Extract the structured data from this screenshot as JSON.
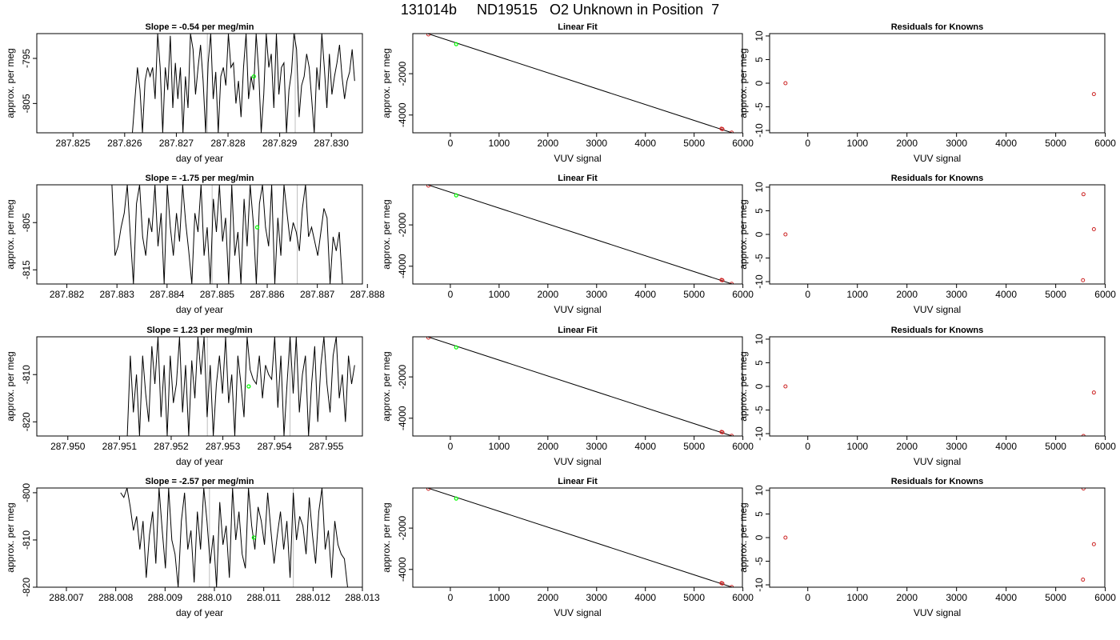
{
  "title": "131014b     ND19515   O2 Unknown in Position  7",
  "colors": {
    "series": "#000000",
    "unknown": "#00ff00",
    "known": "#cc2222",
    "vline": "#bebebe",
    "frame": "#000000"
  },
  "chart_data": [
    {
      "type": "line",
      "title": "Slope =  -0.54  per meg/min",
      "xlabel": "day of year",
      "ylabel": "approx. per meg",
      "xlim": [
        287.8243,
        287.8306
      ],
      "ylim": [
        -811.5,
        -789.5
      ],
      "xticks": [
        "287.825",
        "287.826",
        "287.827",
        "287.828",
        "287.829",
        "287.830"
      ],
      "xtick_values": [
        287.825,
        287.826,
        287.827,
        287.828,
        287.829,
        287.83
      ],
      "yticks": [
        "-795",
        "-805"
      ],
      "ytick_values": [
        -795,
        -805
      ],
      "x_start": 287.82615,
      "x_end": 287.83045,
      "values": [
        -811.5,
        -804,
        -797,
        -802,
        -811.5,
        -800,
        -797,
        -799,
        -797,
        -804,
        -789.5,
        -797,
        -811.5,
        -797,
        -802,
        -790,
        -806,
        -796,
        -804,
        -797,
        -811.5,
        -799,
        -806,
        -789.5,
        -793,
        -803,
        -797,
        -792,
        -800,
        -811.5,
        -796,
        -789.5,
        -804,
        -798,
        -811.5,
        -799,
        -797,
        -801,
        -789.5,
        -797,
        -796,
        -805,
        -800,
        -808,
        -797,
        -789.5,
        -804,
        -799,
        -802,
        -789.5,
        -798,
        -811.5,
        -803,
        -789.5,
        -797,
        -794,
        -806,
        -789.5,
        -803,
        -797,
        -796,
        -811.5,
        -802,
        -798,
        -789.5,
        -793,
        -808,
        -801,
        -799,
        -794,
        -797,
        -804,
        -811.5,
        -797,
        -802,
        -789.5,
        -797,
        -806,
        -794,
        -803,
        -799,
        -796,
        -792,
        -799,
        -804,
        -800,
        -798,
        -793,
        -800
      ],
      "vlines": [
        287.8276,
        287.8293
      ],
      "point": {
        "x": 287.8285,
        "y": -799
      }
    },
    {
      "type": "line",
      "title": "Slope =  -1.75  per meg/min",
      "xlabel": "day of year",
      "ylabel": "approx. per meg",
      "xlim": [
        287.8814,
        287.8879
      ],
      "ylim": [
        -818,
        -797
      ],
      "xticks": [
        "287.882",
        "287.883",
        "287.884",
        "287.885",
        "287.886",
        "287.887",
        "287.888"
      ],
      "xtick_values": [
        287.882,
        287.883,
        287.884,
        287.885,
        287.886,
        287.887,
        287.888
      ],
      "yticks": [
        "-805",
        "-815"
      ],
      "ytick_values": [
        -805,
        -815
      ],
      "x_start": 287.8829,
      "x_end": 287.8875,
      "values": [
        -797,
        -812,
        -810,
        -806,
        -803,
        -797,
        -808,
        -818,
        -801,
        -797,
        -808,
        -812,
        -804,
        -807,
        -797,
        -810,
        -803,
        -818,
        -797,
        -806,
        -812,
        -803,
        -809,
        -797,
        -805,
        -811,
        -818,
        -803,
        -807,
        -797,
        -812,
        -806,
        -818,
        -800,
        -807,
        -797,
        -809,
        -804,
        -818,
        -797,
        -812,
        -807,
        -818,
        -800,
        -810,
        -797,
        -805,
        -818,
        -801,
        -797,
        -806,
        -810,
        -797,
        -818,
        -804,
        -812,
        -797,
        -803,
        -809,
        -805,
        -807,
        -811,
        -802,
        -797,
        -808,
        -806,
        -809,
        -812,
        -807,
        -802,
        -804,
        -818,
        -808,
        -811,
        -807,
        -818
      ],
      "vlines": [
        287.8849,
        287.8866
      ],
      "point": {
        "x": 287.8858,
        "y": -806
      }
    },
    {
      "type": "line",
      "title": "Slope =  1.23  per meg/min",
      "xlabel": "day of year",
      "ylabel": "approx. per meg",
      "xlim": [
        287.9494,
        287.9557
      ],
      "ylim": [
        -823,
        -802
      ],
      "xticks": [
        "287.950",
        "287.951",
        "287.952",
        "287.953",
        "287.954",
        "287.955"
      ],
      "xtick_values": [
        287.95,
        287.951,
        287.952,
        287.953,
        287.954,
        287.955
      ],
      "yticks": [
        "-810",
        "-820"
      ],
      "ytick_values": [
        -810,
        -820
      ],
      "x_start": 287.95115,
      "x_end": 287.95555,
      "values": [
        -823,
        -806,
        -818,
        -810,
        -823,
        -806,
        -814,
        -820,
        -804,
        -812,
        -802,
        -819,
        -808,
        -823,
        -806,
        -816,
        -812,
        -802,
        -818,
        -808,
        -823,
        -807,
        -815,
        -802,
        -810,
        -802,
        -819,
        -808,
        -823,
        -812,
        -806,
        -814,
        -802,
        -816,
        -810,
        -823,
        -806,
        -812,
        -819,
        -802,
        -809,
        -811,
        -812,
        -806,
        -815,
        -808,
        -810,
        -811,
        -802,
        -817,
        -806,
        -823,
        -812,
        -802,
        -814,
        -802,
        -818,
        -810,
        -806,
        -823,
        -812,
        -804,
        -820,
        -808,
        -802,
        -812,
        -818,
        -806,
        -802,
        -815,
        -810,
        -820,
        -806,
        -812,
        -808
      ],
      "vlines": [
        287.9527,
        287.9543
      ],
      "point": {
        "x": 287.9535,
        "y": -812.5
      }
    },
    {
      "type": "line",
      "title": "Slope =  -2.57  per meg/min",
      "xlabel": "day of year",
      "ylabel": "approx. per meg",
      "xlim": [
        288.0064,
        288.013
      ],
      "ylim": [
        -820,
        -799
      ],
      "xticks": [
        "288.007",
        "288.008",
        "288.009",
        "288.010",
        "288.011",
        "288.012",
        "288.013"
      ],
      "xtick_values": [
        288.007,
        288.008,
        288.009,
        288.01,
        288.011,
        288.012,
        288.013
      ],
      "yticks": [
        "-800",
        "-810",
        "-820"
      ],
      "ytick_values": [
        -800,
        -810,
        -820
      ],
      "x_start": 288.0081,
      "x_end": 288.0127,
      "values": [
        -800,
        -801,
        -799,
        -803,
        -808,
        -805,
        -812,
        -806,
        -818,
        -809,
        -804,
        -815,
        -799,
        -808,
        -816,
        -799,
        -810,
        -813,
        -820,
        -806,
        -800,
        -812,
        -808,
        -819,
        -804,
        -812,
        -799,
        -806,
        -815,
        -809,
        -820,
        -802,
        -811,
        -807,
        -818,
        -799,
        -810,
        -804,
        -813,
        -816,
        -799,
        -807,
        -812,
        -803,
        -806,
        -811,
        -800,
        -808,
        -815,
        -809,
        -804,
        -812,
        -806,
        -818,
        -800,
        -810,
        -805,
        -807,
        -813,
        -801,
        -809,
        -815,
        -804,
        -799,
        -812,
        -808,
        -818,
        -806,
        -811,
        -813,
        -814,
        -820
      ],
      "vlines": [
        288.0099,
        288.0116
      ],
      "point": {
        "x": 288.0108,
        "y": -809.5
      }
    },
    {
      "type": "scatter",
      "title": "Linear Fit",
      "xlabel": "VUV signal",
      "ylabel": "approx. per meg",
      "xlim": [
        -770,
        5990
      ],
      "ylim": [
        -4860,
        -60
      ],
      "xticks": [
        "0",
        "1000",
        "2000",
        "3000",
        "4000",
        "5000",
        "6000"
      ],
      "xtick_values": [
        0,
        1000,
        2000,
        3000,
        4000,
        5000,
        6000
      ],
      "yticks": [
        "-2000",
        "-4000"
      ],
      "ytick_values": [
        -2000,
        -4000
      ],
      "line": [
        [
          -700,
          120
        ],
        [
          5780,
          -4860
        ]
      ],
      "knowns": [
        [
          -450,
          -100
        ],
        [
          5560,
          -4660
        ],
        [
          5580,
          -4680
        ],
        [
          5770,
          -4850
        ]
      ],
      "unknowns": [
        [
          120,
          -570
        ]
      ]
    },
    {
      "type": "scatter",
      "title": "Linear Fit",
      "xlabel": "VUV signal",
      "ylabel": "approx. per meg",
      "xlim": [
        -770,
        5990
      ],
      "ylim": [
        -4860,
        -60
      ],
      "xticks": [
        "0",
        "1000",
        "2000",
        "3000",
        "4000",
        "5000",
        "6000"
      ],
      "xtick_values": [
        0,
        1000,
        2000,
        3000,
        4000,
        5000,
        6000
      ],
      "yticks": [
        "-2000",
        "-4000"
      ],
      "ytick_values": [
        -2000,
        -4000
      ],
      "line": [
        [
          -700,
          120
        ],
        [
          5780,
          -4860
        ]
      ],
      "knowns": [
        [
          -450,
          -100
        ],
        [
          5560,
          -4660
        ],
        [
          5580,
          -4680
        ],
        [
          5770,
          -4850
        ]
      ],
      "unknowns": [
        [
          120,
          -570
        ]
      ]
    },
    {
      "type": "scatter",
      "title": "Linear Fit",
      "xlabel": "VUV signal",
      "ylabel": "approx. per meg",
      "xlim": [
        -770,
        5990
      ],
      "ylim": [
        -4860,
        -60
      ],
      "xticks": [
        "0",
        "1000",
        "2000",
        "3000",
        "4000",
        "5000",
        "6000"
      ],
      "xtick_values": [
        0,
        1000,
        2000,
        3000,
        4000,
        5000,
        6000
      ],
      "yticks": [
        "-2000",
        "-4000"
      ],
      "ytick_values": [
        -2000,
        -4000
      ],
      "line": [
        [
          -700,
          120
        ],
        [
          5780,
          -4860
        ]
      ],
      "knowns": [
        [
          -450,
          -100
        ],
        [
          5560,
          -4660
        ],
        [
          5580,
          -4680
        ],
        [
          5770,
          -4850
        ]
      ],
      "unknowns": [
        [
          120,
          -570
        ]
      ]
    },
    {
      "type": "scatter",
      "title": "Linear Fit",
      "xlabel": "VUV signal",
      "ylabel": "approx. per meg",
      "xlim": [
        -770,
        5990
      ],
      "ylim": [
        -4860,
        -60
      ],
      "xticks": [
        "0",
        "1000",
        "2000",
        "3000",
        "4000",
        "5000",
        "6000"
      ],
      "xtick_values": [
        0,
        1000,
        2000,
        3000,
        4000,
        5000,
        6000
      ],
      "yticks": [
        "-2000",
        "-4000"
      ],
      "ytick_values": [
        -2000,
        -4000
      ],
      "line": [
        [
          -700,
          120
        ],
        [
          5780,
          -4860
        ]
      ],
      "knowns": [
        [
          -450,
          -100
        ],
        [
          5560,
          -4660
        ],
        [
          5580,
          -4680
        ],
        [
          5770,
          -4850
        ]
      ],
      "unknowns": [
        [
          120,
          -570
        ]
      ]
    },
    {
      "type": "scatter",
      "title": "Residuals for Knowns",
      "xlabel": "VUV signal",
      "ylabel": "approx. per meg",
      "xlim": [
        -770,
        5990
      ],
      "ylim": [
        -10.5,
        10.5
      ],
      "xticks": [
        "0",
        "1000",
        "2000",
        "3000",
        "4000",
        "5000",
        "6000"
      ],
      "xtick_values": [
        0,
        1000,
        2000,
        3000,
        4000,
        5000,
        6000
      ],
      "yticks": [
        "-10",
        "-5",
        "0",
        "5",
        "10"
      ],
      "ytick_values": [
        -10,
        -5,
        0,
        5,
        10
      ],
      "knowns": [
        [
          -450,
          0
        ],
        [
          5770,
          -2.3
        ]
      ]
    },
    {
      "type": "scatter",
      "title": "Residuals for Knowns",
      "xlabel": "VUV signal",
      "ylabel": "approx. per meg",
      "xlim": [
        -770,
        5990
      ],
      "ylim": [
        -10.5,
        10.5
      ],
      "xticks": [
        "0",
        "1000",
        "2000",
        "3000",
        "4000",
        "5000",
        "6000"
      ],
      "xtick_values": [
        0,
        1000,
        2000,
        3000,
        4000,
        5000,
        6000
      ],
      "yticks": [
        "-10",
        "-5",
        "0",
        "5",
        "10"
      ],
      "ytick_values": [
        -10,
        -5,
        0,
        5,
        10
      ],
      "knowns": [
        [
          -450,
          0
        ],
        [
          5560,
          8.5
        ],
        [
          5770,
          1.1
        ],
        [
          5550,
          -9.7
        ]
      ]
    },
    {
      "type": "scatter",
      "title": "Residuals for Knowns",
      "xlabel": "VUV signal",
      "ylabel": "approx. per meg",
      "xlim": [
        -770,
        5990
      ],
      "ylim": [
        -10.5,
        10.5
      ],
      "xticks": [
        "0",
        "1000",
        "2000",
        "3000",
        "4000",
        "5000",
        "6000"
      ],
      "xtick_values": [
        0,
        1000,
        2000,
        3000,
        4000,
        5000,
        6000
      ],
      "yticks": [
        "-10",
        "-5",
        "0",
        "5",
        "10"
      ],
      "ytick_values": [
        -10,
        -5,
        0,
        5,
        10
      ],
      "knowns": [
        [
          -450,
          0
        ],
        [
          5770,
          -1.3
        ],
        [
          5560,
          -10.5
        ]
      ]
    },
    {
      "type": "scatter",
      "title": "Residuals for Knowns",
      "xlabel": "VUV signal",
      "ylabel": "approx. per meg",
      "xlim": [
        -770,
        5990
      ],
      "ylim": [
        -10.5,
        10.5
      ],
      "xticks": [
        "0",
        "1000",
        "2000",
        "3000",
        "4000",
        "5000",
        "6000"
      ],
      "xtick_values": [
        0,
        1000,
        2000,
        3000,
        4000,
        5000,
        6000
      ],
      "yticks": [
        "-10",
        "-5",
        "0",
        "5",
        "10"
      ],
      "ytick_values": [
        -10,
        -5,
        0,
        5,
        10
      ],
      "knowns": [
        [
          -450,
          0
        ],
        [
          5560,
          10.4
        ],
        [
          5770,
          -1.4
        ],
        [
          5550,
          -8.9
        ]
      ]
    }
  ]
}
